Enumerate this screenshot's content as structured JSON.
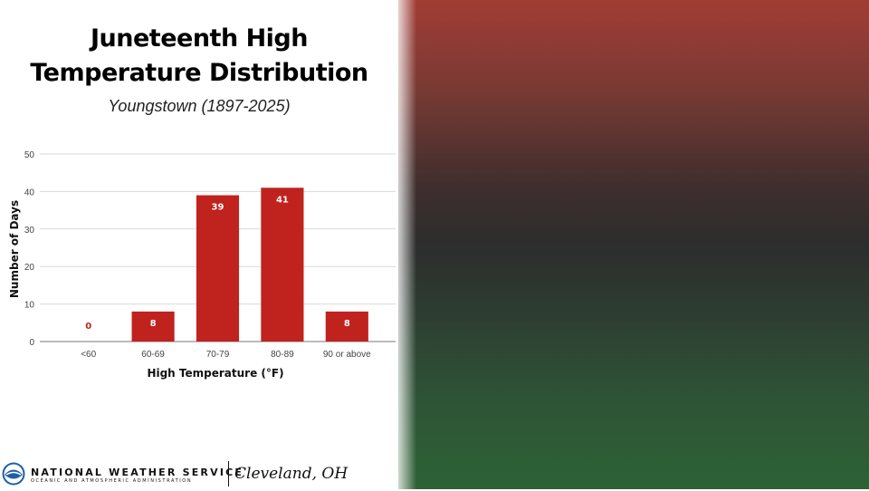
{
  "chart_data": {
    "type": "bar",
    "title_lines": [
      "Juneteenth High",
      "Temperature Distribution"
    ],
    "subtitle": "Youngstown (1897-2025)",
    "categories": [
      "<60",
      "60-69",
      "70-79",
      "80-89",
      "90 or above"
    ],
    "values": [
      0,
      8,
      39,
      41,
      8
    ],
    "data_labels": [
      "0",
      "8",
      "39",
      "41",
      "8"
    ],
    "xlabel": "High Temperature (°F)",
    "ylabel": "Number of Days",
    "ylim": [
      0,
      50
    ],
    "yticks": [
      0,
      10,
      20,
      30,
      40,
      50
    ],
    "ytick_labels": [
      "0",
      "10",
      "20",
      "30",
      "40",
      "50"
    ],
    "grid": true,
    "legend": "none",
    "bar_color": "#c0221e",
    "zero_label_color": "#c0221e",
    "label_color": "#ffffff"
  },
  "footer": {
    "agency": "NATIONAL WEATHER SERVICE",
    "agency_sub": "OCEANIC AND ATMOSPHERIC ADMINISTRATION",
    "office": "Cleveland, OH",
    "logo_icon": "noaa-logo-icon"
  },
  "colors": {
    "panel_top": "#a13c34",
    "panel_middle": "#2d2d2d",
    "panel_bottom": "#2d6235"
  }
}
